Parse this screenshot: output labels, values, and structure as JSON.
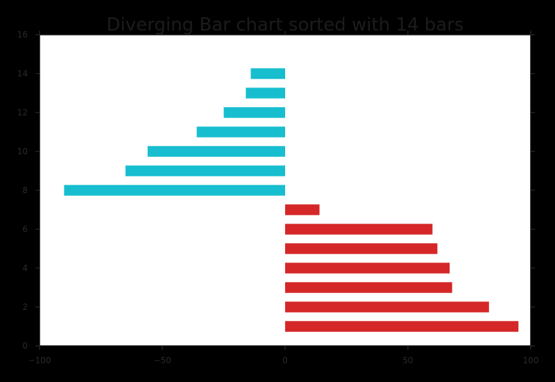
{
  "chart_data": {
    "type": "bar",
    "orientation": "horizontal",
    "title": "Diverging Bar chart sorted with 14 bars",
    "xlabel": "",
    "ylabel": "",
    "xlim": [
      -100,
      100
    ],
    "ylim": [
      0,
      16
    ],
    "x_ticks": [
      -100,
      -50,
      0,
      50,
      100
    ],
    "x_tick_labels": [
      "−100",
      "−50",
      "0",
      "50",
      "100"
    ],
    "y_ticks": [
      0,
      2,
      4,
      6,
      8,
      10,
      12,
      14,
      16
    ],
    "y_tick_labels": [
      "0",
      "2",
      "4",
      "6",
      "8",
      "10",
      "12",
      "14",
      "16"
    ],
    "grid": false,
    "colors": {
      "positive": "#d62728",
      "negative": "#17becf",
      "background": "#000000",
      "plot_area": "#ffffff"
    },
    "bars": [
      {
        "y": 1,
        "value": 95
      },
      {
        "y": 2,
        "value": 83
      },
      {
        "y": 3,
        "value": 68
      },
      {
        "y": 4,
        "value": 67
      },
      {
        "y": 5,
        "value": 62
      },
      {
        "y": 6,
        "value": 60
      },
      {
        "y": 7,
        "value": 14
      },
      {
        "y": 8,
        "value": -90
      },
      {
        "y": 9,
        "value": -65
      },
      {
        "y": 10,
        "value": -56
      },
      {
        "y": 11,
        "value": -36
      },
      {
        "y": 12,
        "value": -25
      },
      {
        "y": 13,
        "value": -16
      },
      {
        "y": 14,
        "value": -14
      }
    ]
  }
}
